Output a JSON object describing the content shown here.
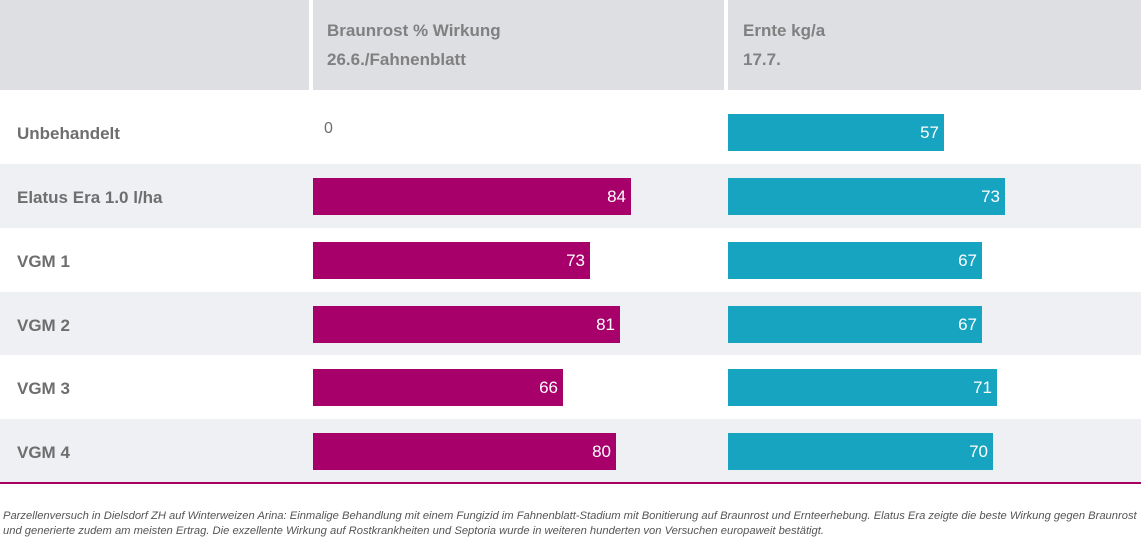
{
  "header": {
    "col1_line1": "Braunrost % Wirkung",
    "col1_line2": "26.6./Fahnenblatt",
    "col2_line1": "Ernte kg/a",
    "col2_line2": "17.7."
  },
  "colors": {
    "braunrost": "#a8006a",
    "ernte": "#16a4c0",
    "header_bg": "#dedfe3",
    "row_shade": "#eff0f4",
    "divider": "#a4005f"
  },
  "chart_data": {
    "type": "bar",
    "orientation": "horizontal",
    "categories": [
      "Unbehandelt",
      "Elatus Era 1.0 l/ha",
      "VGM 1",
      "VGM 2",
      "VGM 3",
      "VGM 4"
    ],
    "series": [
      {
        "name": "Braunrost % Wirkung 26.6./Fahnenblatt",
        "values": [
          0,
          84,
          73,
          81,
          66,
          80
        ]
      },
      {
        "name": "Ernte kg/a 17.7.",
        "values": [
          57,
          73,
          67,
          67,
          71,
          70
        ]
      }
    ],
    "xlim": [
      0,
      100
    ],
    "grid": false,
    "legend": "none"
  },
  "footnote": "Parzellenversuch in Dielsdorf ZH auf Winterweizen Arina: Einmalige Behandlung mit einem Fungizid im Fahnenblatt-Stadium mit Bonitierung auf Braunrost und Ernteerhebung. Elatus Era zeigte die beste Wirkung gegen Braunrost und generierte zudem am meisten Ertrag. Die exzellente Wirkung auf Rostkrankheiten und Septoria wurde in weiteren hunderten von Versuchen europaweit bestätigt."
}
